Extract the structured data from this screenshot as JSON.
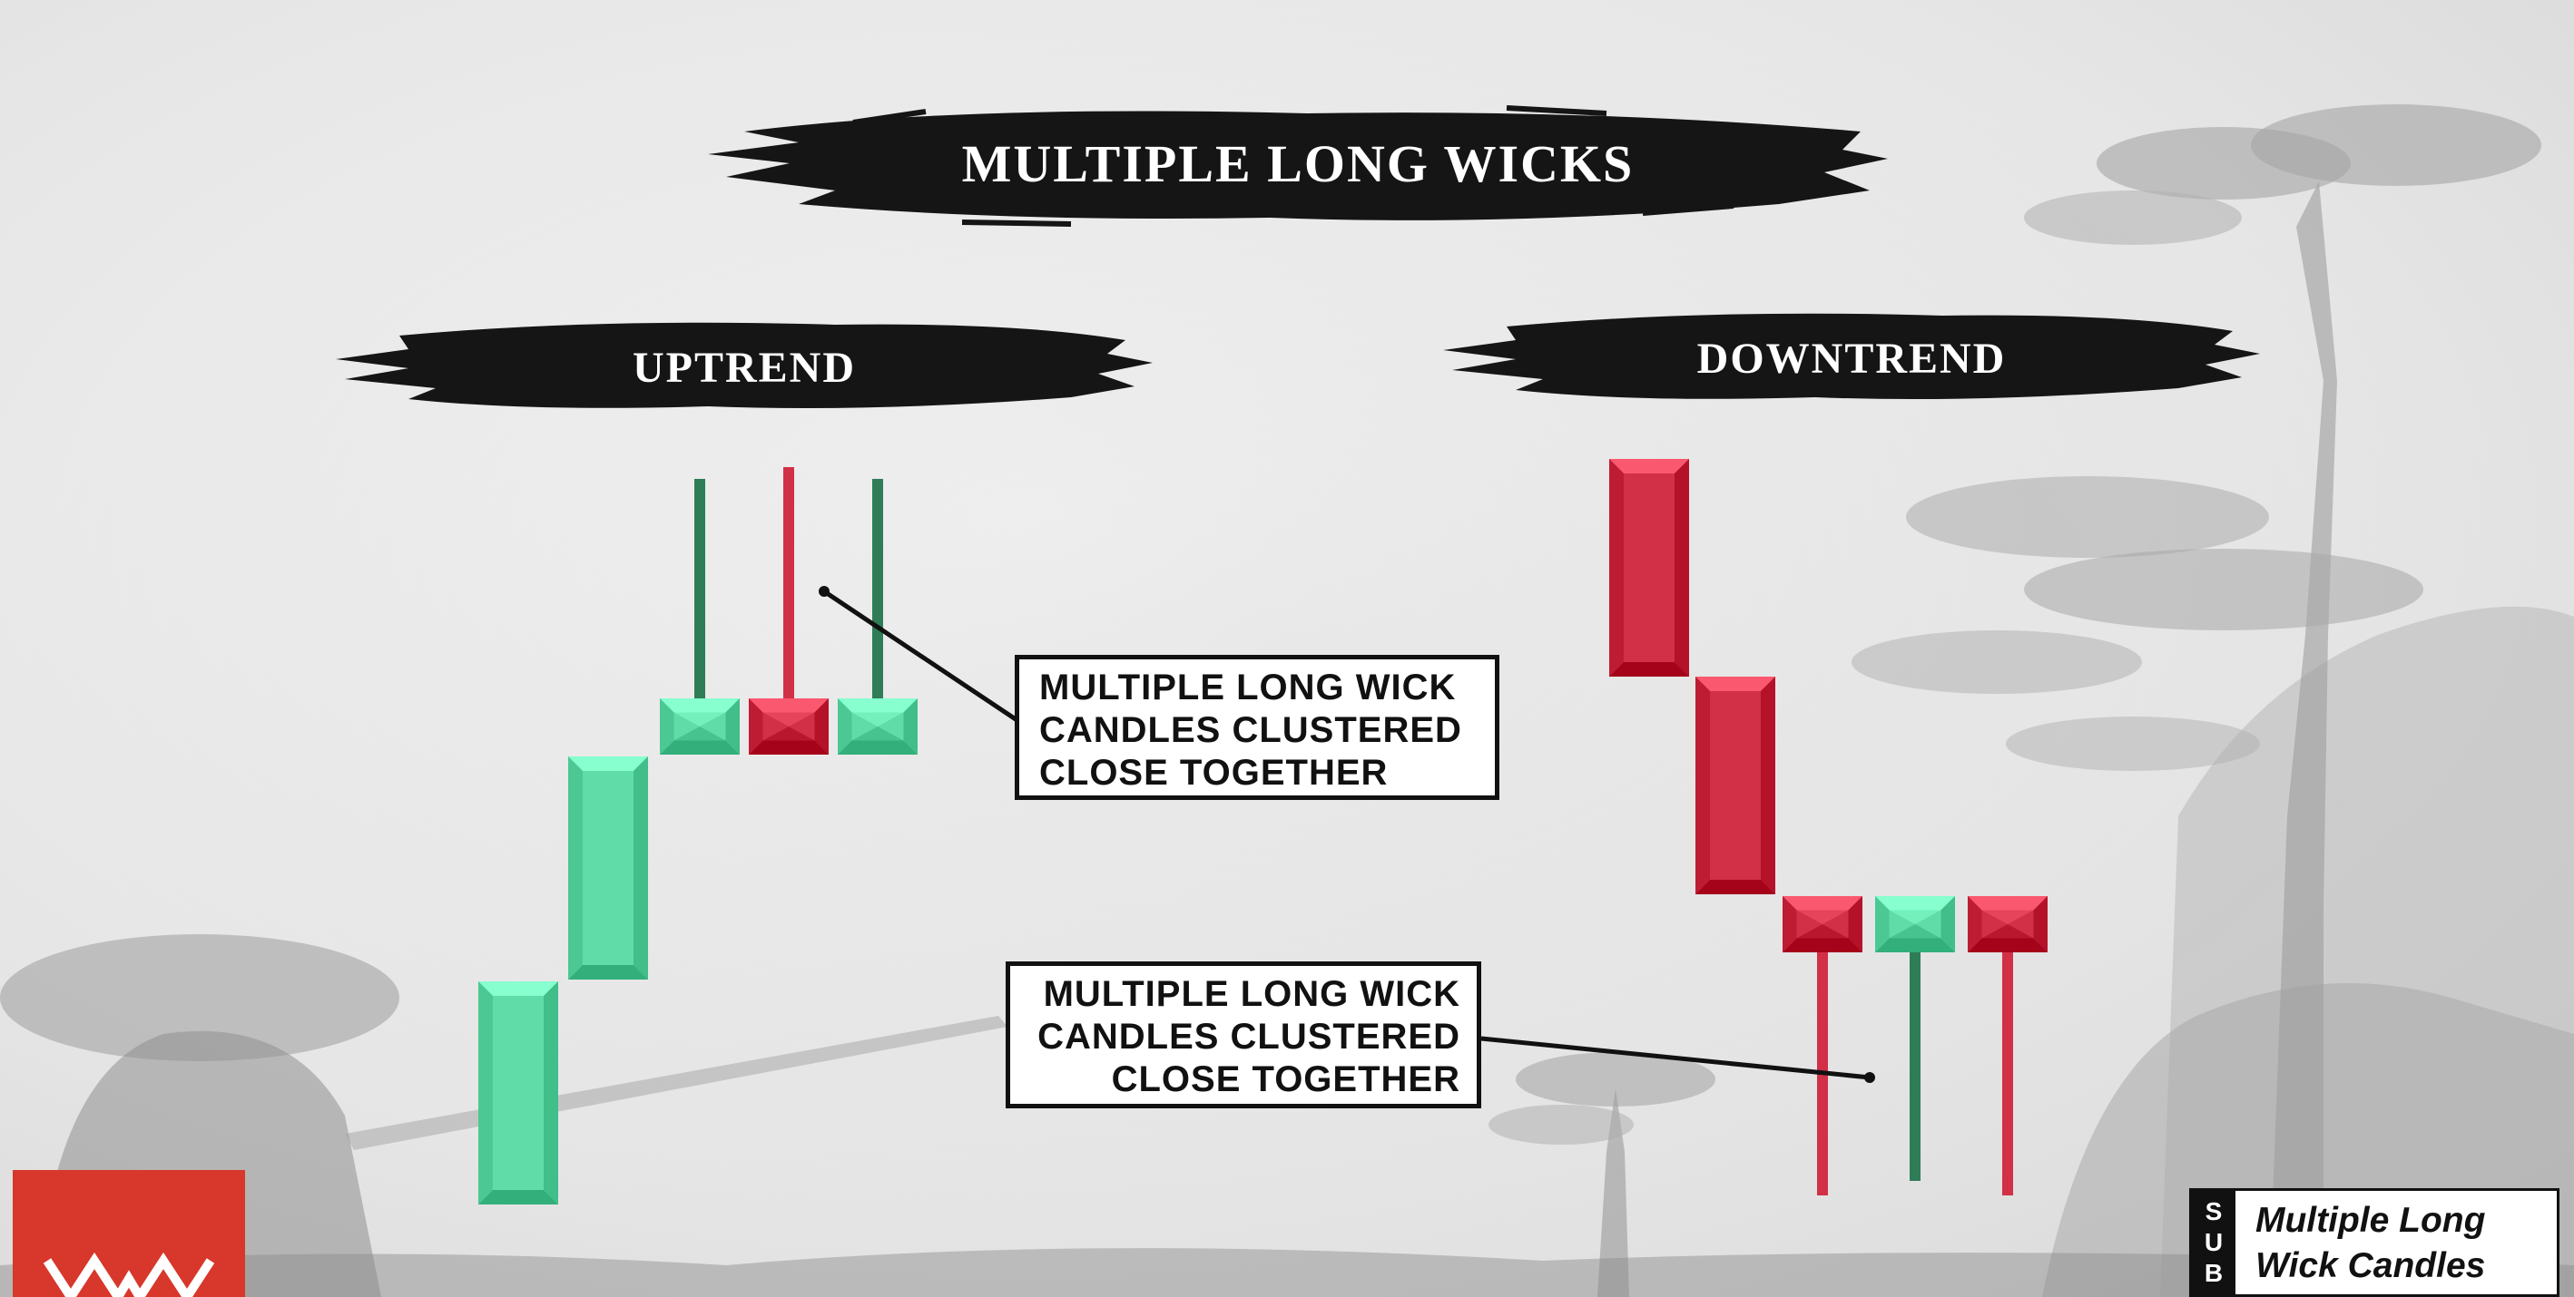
{
  "title": "MULTIPLE LONG WICKS",
  "panels": {
    "uptrend": {
      "label": "UPTREND"
    },
    "downtrend": {
      "label": "DOWNTREND"
    }
  },
  "callouts": {
    "uptrend": [
      "MULTIPLE LONG WICK",
      "CANDLES CLUSTERED",
      "CLOSE TOGETHER"
    ],
    "downtrend": [
      "MULTIPLE LONG WICK",
      "CANDLES CLUSTERED",
      "CLOSE TOGETHER"
    ]
  },
  "subscribe_badge": {
    "letters": [
      "S",
      "U",
      "B"
    ],
    "line1": "Multiple Long",
    "line2": "Wick Candles"
  },
  "colors": {
    "bull": "#5fdca7",
    "bull_wick": "#2e7d56",
    "bear": "#d23047",
    "bear_wick": "#d23047",
    "brush": "#151515",
    "logo": "#d8372b"
  },
  "icons": {
    "logo": "brand-logo-icon",
    "background": "ink-landscape-illustration"
  }
}
